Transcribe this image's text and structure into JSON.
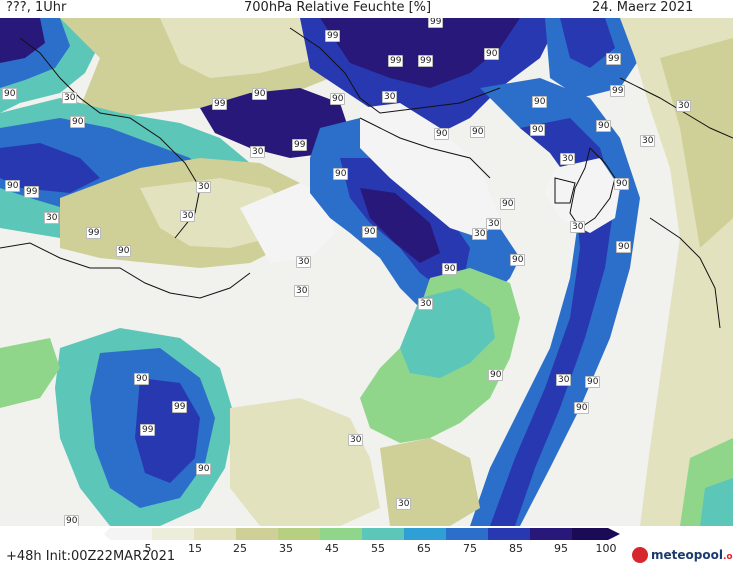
{
  "header": {
    "left_text": "???, 1Uhr",
    "title": "700hPa Relative Feuchte [%]",
    "date": "24. Maerz 2021"
  },
  "colors": {
    "background_land": "#f1f1ee",
    "coast": "#111111",
    "scale": [
      "#f4f4f4",
      "#ededdc",
      "#e2e2bf",
      "#cfcf98",
      "#b6cf80",
      "#8fd68a",
      "#5cc6b8",
      "#2f9fd6",
      "#2c6fcb",
      "#2838b0",
      "#27187a",
      "#1b0a55"
    ]
  },
  "map": {
    "title": "700hPa Relative Feuchte [%]",
    "legend_unit": "%",
    "contour_labels": [
      "99",
      "99",
      "90",
      "99",
      "99",
      "90",
      "99",
      "90",
      "99",
      "90",
      "30",
      "90",
      "30",
      "99",
      "90",
      "30",
      "99",
      "90",
      "90",
      "90",
      "30",
      "90",
      "90",
      "30",
      "90",
      "30",
      "90",
      "99",
      "90",
      "30",
      "30",
      "90",
      "30",
      "99",
      "90",
      "30",
      "30",
      "90",
      "90",
      "30",
      "90",
      "30",
      "30",
      "90",
      "30",
      "90",
      "30",
      "90",
      "99",
      "90",
      "99",
      "90",
      "30",
      "90",
      "30"
    ]
  },
  "legend": {
    "ticks": [
      "5",
      "15",
      "25",
      "35",
      "45",
      "55",
      "65",
      "75",
      "85",
      "95",
      "100"
    ]
  },
  "footer": {
    "init_text": "+48h Init:00Z22MAR2021",
    "logo_text": "meteopool",
    "logo_suffix": ".org"
  }
}
